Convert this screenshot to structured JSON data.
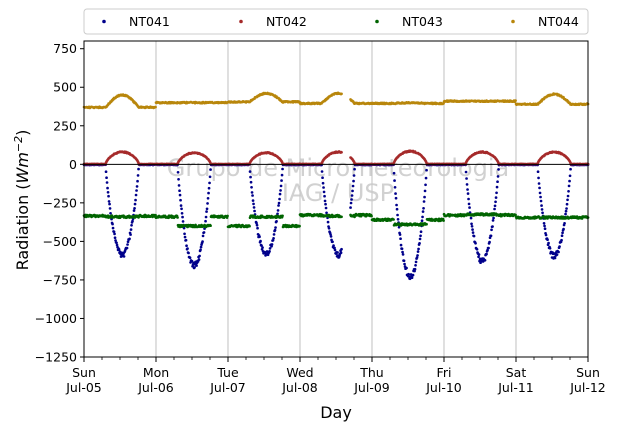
{
  "chart_data": {
    "type": "scatter",
    "ylabel_main": "Radiation (",
    "ylabel_unit_base": "Wm",
    "ylabel_unit_exp": "−2",
    "ylabel_close": ")",
    "xlabel": "Day",
    "xlim_days": [
      0,
      7
    ],
    "ylim": [
      -1250,
      800
    ],
    "yticks": [
      750,
      500,
      250,
      0,
      -250,
      -500,
      -750,
      -1000,
      -1250
    ],
    "ytick_labels": [
      "750",
      "500",
      "250",
      "0",
      "−250",
      "−500",
      "−750",
      "−1000",
      "−1250"
    ],
    "xticks": [
      {
        "day": 0,
        "weekday": "Sun",
        "date": "Jul-05"
      },
      {
        "day": 1,
        "weekday": "Mon",
        "date": "Jul-06"
      },
      {
        "day": 2,
        "weekday": "Tue",
        "date": "Jul-07"
      },
      {
        "day": 3,
        "weekday": "Wed",
        "date": "Jul-08"
      },
      {
        "day": 4,
        "weekday": "Thu",
        "date": "Jul-09"
      },
      {
        "day": 5,
        "weekday": "Fri",
        "date": "Jul-10"
      },
      {
        "day": 6,
        "weekday": "Sat",
        "date": "Jul-11"
      },
      {
        "day": 7,
        "weekday": "Sun",
        "date": "Jul-12"
      }
    ],
    "grid": "vertical",
    "legend_position": "top",
    "watermark": [
      "Grupo de Micrometeorologia",
      "IAG / USP"
    ],
    "series": [
      {
        "name": "NT041",
        "color": "#00008b"
      },
      {
        "name": "NT042",
        "color": "#a52a2a"
      },
      {
        "name": "NT043",
        "color": "#006400"
      },
      {
        "name": "NT044",
        "color": "#b8860b"
      }
    ],
    "gap_days": [
      3.58,
      3.7
    ],
    "daily": {
      "NT041_min": [
        -580,
        -650,
        -570,
        -580,
        -720,
        -620,
        -590
      ],
      "NT042_peak": [
        80,
        75,
        75,
        80,
        85,
        80,
        80
      ],
      "NT043_day": [
        -340,
        -400,
        -340,
        -335,
        -390,
        -325,
        -345
      ],
      "NT043_night": [
        -335,
        -340,
        -400,
        -330,
        -360,
        -330,
        -345
      ],
      "NT044_day": [
        450,
        400,
        460,
        460,
        400,
        410,
        455
      ],
      "NT044_night": [
        370,
        400,
        405,
        395,
        395,
        410,
        390
      ]
    }
  }
}
